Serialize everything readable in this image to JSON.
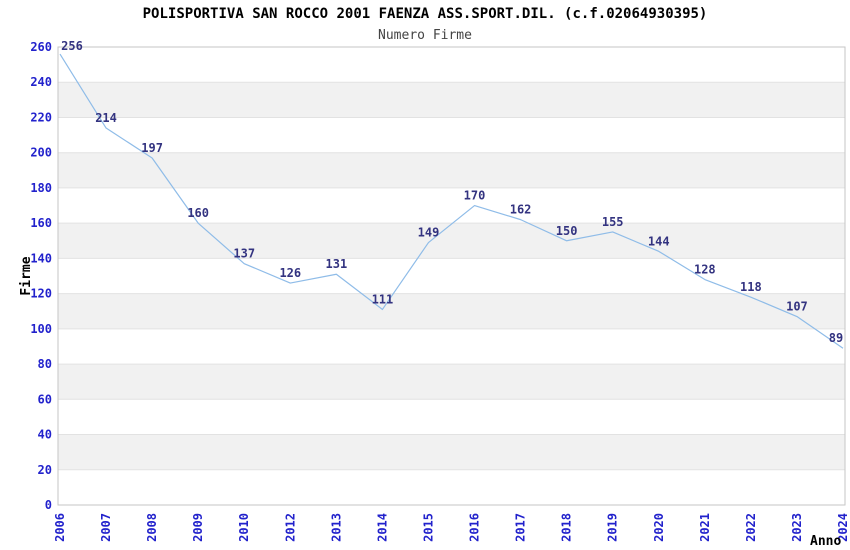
{
  "chart_data": {
    "type": "line",
    "title": "POLISPORTIVA SAN ROCCO 2001 FAENZA ASS.SPORT.DIL. (c.f.02064930395)",
    "subtitle": "Numero Firme",
    "xlabel": "Anno",
    "ylabel": "Firme",
    "categories": [
      "2006",
      "2007",
      "2008",
      "2009",
      "2010",
      "2012",
      "2013",
      "2014",
      "2015",
      "2016",
      "2017",
      "2018",
      "2019",
      "2020",
      "2021",
      "2022",
      "2023",
      "2024"
    ],
    "values": [
      256,
      214,
      197,
      160,
      137,
      126,
      131,
      111,
      149,
      170,
      162,
      150,
      155,
      144,
      128,
      118,
      107,
      89
    ],
    "ylim": [
      0,
      260
    ],
    "ytick_step": 20,
    "grid": "horizontal-alternating-bands",
    "legend": "none",
    "data_labels": "shown-above-points",
    "x_tick_rotation": -90,
    "colors": {
      "line": "#8fbce8",
      "tick_label": "#2222cc",
      "data_label": "#333380",
      "band": "#f1f1f1",
      "gridline": "#e2e2e2",
      "border": "#c6c6c6",
      "title": "#000000",
      "subtitle": "#444444",
      "background": "#ffffff"
    }
  }
}
